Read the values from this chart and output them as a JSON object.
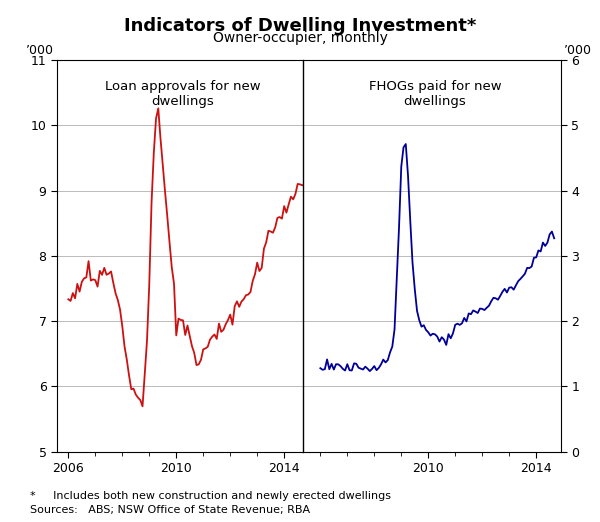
{
  "title": "Indicators of Dwelling Investment*",
  "subtitle": "Owner-occupier, monthly",
  "left_label": "Loan approvals for new\ndwellings",
  "right_label": "FHOGs paid for new\ndwellings",
  "ylabel_top": "’000",
  "footnote": "*     Includes both new construction and newly erected dwellings",
  "sources": "Sources:   ABS; NSW Office of State Revenue; RBA",
  "left_color": "#cc1111",
  "right_color": "#000099",
  "left_ylim": [
    5,
    11
  ],
  "right_ylim": [
    0,
    6
  ],
  "left_yticks": [
    5,
    6,
    7,
    8,
    9,
    10,
    11
  ],
  "right_yticks": [
    0,
    1,
    2,
    3,
    4,
    5,
    6
  ],
  "background_color": "#ffffff",
  "grid_color": "#bbbbbb",
  "left_cp_t": [
    0,
    0.3,
    0.5,
    0.7,
    1.0,
    1.2,
    1.5,
    1.7,
    2.0,
    2.3,
    2.55,
    2.75,
    2.95,
    3.1,
    3.3,
    3.5,
    3.7,
    4.0,
    4.2,
    4.4,
    4.6,
    4.8,
    5.0,
    5.3,
    5.6,
    6.0,
    6.4,
    6.8,
    7.1,
    7.4,
    7.8,
    8.2,
    8.5
  ],
  "left_cp_v": [
    7.3,
    7.5,
    7.6,
    7.75,
    7.55,
    7.7,
    7.8,
    7.5,
    7.0,
    6.15,
    5.85,
    5.72,
    6.9,
    9.1,
    10.5,
    9.3,
    8.5,
    7.0,
    7.0,
    6.8,
    6.6,
    6.3,
    6.5,
    6.7,
    6.9,
    7.0,
    7.3,
    7.6,
    7.85,
    8.35,
    8.55,
    8.85,
    9.1
  ],
  "right_cp_t": [
    0,
    0.5,
    1.0,
    1.5,
    2.0,
    2.4,
    2.6,
    2.75,
    2.9,
    3.0,
    3.1,
    3.2,
    3.3,
    3.45,
    3.6,
    3.8,
    4.0,
    4.3,
    4.6,
    5.0,
    5.5,
    6.0,
    6.5,
    7.0,
    7.5,
    8.0,
    8.5
  ],
  "right_cp_v": [
    1.3,
    1.28,
    1.3,
    1.28,
    1.3,
    1.35,
    1.45,
    1.9,
    3.2,
    4.35,
    4.85,
    4.6,
    3.8,
    2.6,
    2.1,
    1.95,
    1.85,
    1.75,
    1.7,
    1.9,
    2.1,
    2.2,
    2.35,
    2.5,
    2.7,
    3.0,
    3.3
  ]
}
